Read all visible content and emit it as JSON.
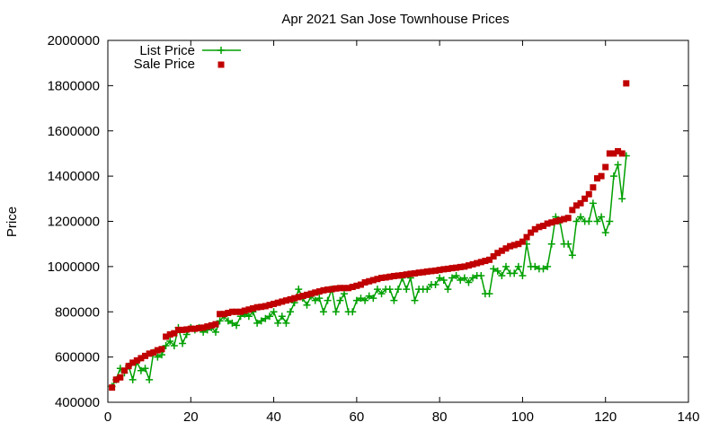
{
  "chart_data": {
    "type": "scatter",
    "title": "Apr 2021 San Jose Townhouse Prices",
    "xlabel": "",
    "ylabel": "Price",
    "xlim": [
      0,
      140
    ],
    "ylim": [
      400000,
      2000000
    ],
    "xticks": [
      0,
      20,
      40,
      60,
      80,
      100,
      120,
      140
    ],
    "yticks": [
      400000,
      600000,
      800000,
      1000000,
      1200000,
      1400000,
      1600000,
      1800000,
      2000000
    ],
    "grid": false,
    "legend": "top-left",
    "series": [
      {
        "name": "List Price",
        "style": "line-points",
        "color": "#00a000",
        "marker": "plus",
        "x": [
          1,
          2,
          3,
          4,
          5,
          6,
          7,
          8,
          9,
          10,
          11,
          12,
          13,
          14,
          15,
          16,
          17,
          18,
          19,
          20,
          21,
          22,
          23,
          24,
          25,
          26,
          27,
          28,
          29,
          30,
          31,
          32,
          33,
          34,
          35,
          36,
          37,
          38,
          39,
          40,
          41,
          42,
          43,
          44,
          45,
          46,
          47,
          48,
          49,
          50,
          51,
          52,
          53,
          54,
          55,
          56,
          57,
          58,
          59,
          60,
          61,
          62,
          63,
          64,
          65,
          66,
          67,
          68,
          69,
          70,
          71,
          72,
          73,
          74,
          75,
          76,
          77,
          78,
          79,
          80,
          81,
          82,
          83,
          84,
          85,
          86,
          87,
          88,
          89,
          90,
          91,
          92,
          93,
          94,
          95,
          96,
          97,
          98,
          99,
          100,
          101,
          102,
          103,
          104,
          105,
          106,
          107,
          108,
          109,
          110,
          111,
          112,
          113,
          114,
          115,
          116,
          117,
          118,
          119,
          120,
          121,
          122,
          123,
          124,
          125
        ],
        "values": [
          470000,
          500000,
          550000,
          530000,
          560000,
          500000,
          580000,
          540000,
          550000,
          500000,
          620000,
          600000,
          610000,
          650000,
          670000,
          650000,
          730000,
          660000,
          700000,
          730000,
          720000,
          730000,
          710000,
          720000,
          730000,
          710000,
          760000,
          780000,
          760000,
          750000,
          740000,
          780000,
          790000,
          780000,
          800000,
          750000,
          760000,
          770000,
          780000,
          800000,
          750000,
          780000,
          750000,
          800000,
          840000,
          900000,
          860000,
          830000,
          870000,
          850000,
          860000,
          800000,
          850000,
          900000,
          800000,
          850000,
          880000,
          800000,
          800000,
          850000,
          860000,
          850000,
          870000,
          860000,
          900000,
          880000,
          900000,
          900000,
          850000,
          900000,
          950000,
          900000,
          950000,
          850000,
          900000,
          900000,
          900000,
          920000,
          920000,
          950000,
          940000,
          900000,
          950000,
          960000,
          940000,
          950000,
          930000,
          950000,
          960000,
          960000,
          880000,
          880000,
          990000,
          980000,
          960000,
          1000000,
          970000,
          970000,
          1000000,
          960000,
          1100000,
          1000000,
          1000000,
          990000,
          990000,
          1000000,
          1100000,
          1220000,
          1200000,
          1100000,
          1100000,
          1050000,
          1200000,
          1220000,
          1200000,
          1200000,
          1280000,
          1200000,
          1220000,
          1150000,
          1200000,
          1400000,
          1450000,
          1300000,
          1490000
        ]
      },
      {
        "name": "Sale Price",
        "style": "points",
        "color": "#c00000",
        "marker": "square",
        "x": [
          1,
          2,
          3,
          4,
          5,
          6,
          7,
          8,
          9,
          10,
          11,
          12,
          13,
          14,
          15,
          16,
          17,
          18,
          19,
          20,
          21,
          22,
          23,
          24,
          25,
          26,
          27,
          28,
          29,
          30,
          31,
          32,
          33,
          34,
          35,
          36,
          37,
          38,
          39,
          40,
          41,
          42,
          43,
          44,
          45,
          46,
          47,
          48,
          49,
          50,
          51,
          52,
          53,
          54,
          55,
          56,
          57,
          58,
          59,
          60,
          61,
          62,
          63,
          64,
          65,
          66,
          67,
          68,
          69,
          70,
          71,
          72,
          73,
          74,
          75,
          76,
          77,
          78,
          79,
          80,
          81,
          82,
          83,
          84,
          85,
          86,
          87,
          88,
          89,
          90,
          91,
          92,
          93,
          94,
          95,
          96,
          97,
          98,
          99,
          100,
          101,
          102,
          103,
          104,
          105,
          106,
          107,
          108,
          109,
          110,
          111,
          112,
          113,
          114,
          115,
          116,
          117,
          118,
          119,
          120,
          121,
          122,
          123,
          124,
          125
        ],
        "values": [
          465000,
          500000,
          510000,
          540000,
          560000,
          575000,
          585000,
          595000,
          605000,
          615000,
          620000,
          630000,
          635000,
          690000,
          700000,
          705000,
          720000,
          720000,
          722000,
          725000,
          725000,
          728000,
          730000,
          735000,
          740000,
          745000,
          790000,
          790000,
          795000,
          800000,
          800000,
          800000,
          805000,
          810000,
          815000,
          820000,
          822000,
          825000,
          830000,
          835000,
          840000,
          845000,
          850000,
          855000,
          860000,
          865000,
          870000,
          875000,
          880000,
          885000,
          890000,
          895000,
          898000,
          900000,
          903000,
          905000,
          905000,
          905000,
          910000,
          915000,
          920000,
          930000,
          935000,
          940000,
          945000,
          950000,
          952000,
          955000,
          958000,
          960000,
          962000,
          965000,
          968000,
          970000,
          973000,
          975000,
          978000,
          980000,
          982000,
          985000,
          988000,
          990000,
          993000,
          995000,
          998000,
          1000000,
          1005000,
          1010000,
          1015000,
          1020000,
          1025000,
          1030000,
          1045000,
          1060000,
          1070000,
          1080000,
          1090000,
          1095000,
          1100000,
          1110000,
          1130000,
          1150000,
          1165000,
          1175000,
          1180000,
          1190000,
          1195000,
          1200000,
          1205000,
          1210000,
          1215000,
          1250000,
          1270000,
          1280000,
          1300000,
          1320000,
          1350000,
          1390000,
          1400000,
          1440000,
          1500000,
          1500000,
          1510000,
          1500000,
          1810000
        ]
      }
    ]
  }
}
